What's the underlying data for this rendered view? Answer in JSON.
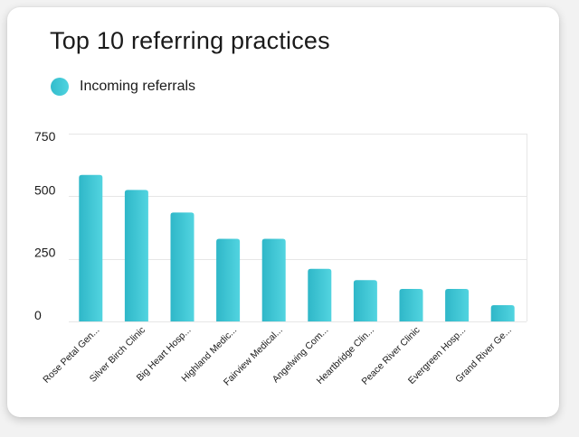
{
  "card": {
    "title": "Top 10 referring practices"
  },
  "legend": {
    "label": "Incoming referrals",
    "color": "#3cc6d3"
  },
  "colors": {
    "bar_left": "#2fb7c8",
    "bar_right": "#52d4e0",
    "grid": "#e6e6e6"
  },
  "chart_data": {
    "type": "bar",
    "title": "Top 10 referring practices",
    "xlabel": "",
    "ylabel": "",
    "ylim": [
      0,
      750
    ],
    "yticks": [
      0,
      250,
      500,
      750
    ],
    "grid": true,
    "legend_position": "top-left",
    "categories": [
      "Rose Petal Gen...",
      "Silver Birch Clinic",
      "Big Heart Hosp...",
      "Highland Medic...",
      "Fairview Medical...",
      "Angelwing Com...",
      "Heartbridge Clin...",
      "Peace River Clinic",
      "Evergreen Hosp...",
      "Grand River Ge..."
    ],
    "series": [
      {
        "name": "Incoming referrals",
        "values": [
          585,
          525,
          435,
          330,
          330,
          210,
          165,
          130,
          130,
          65
        ]
      }
    ]
  }
}
